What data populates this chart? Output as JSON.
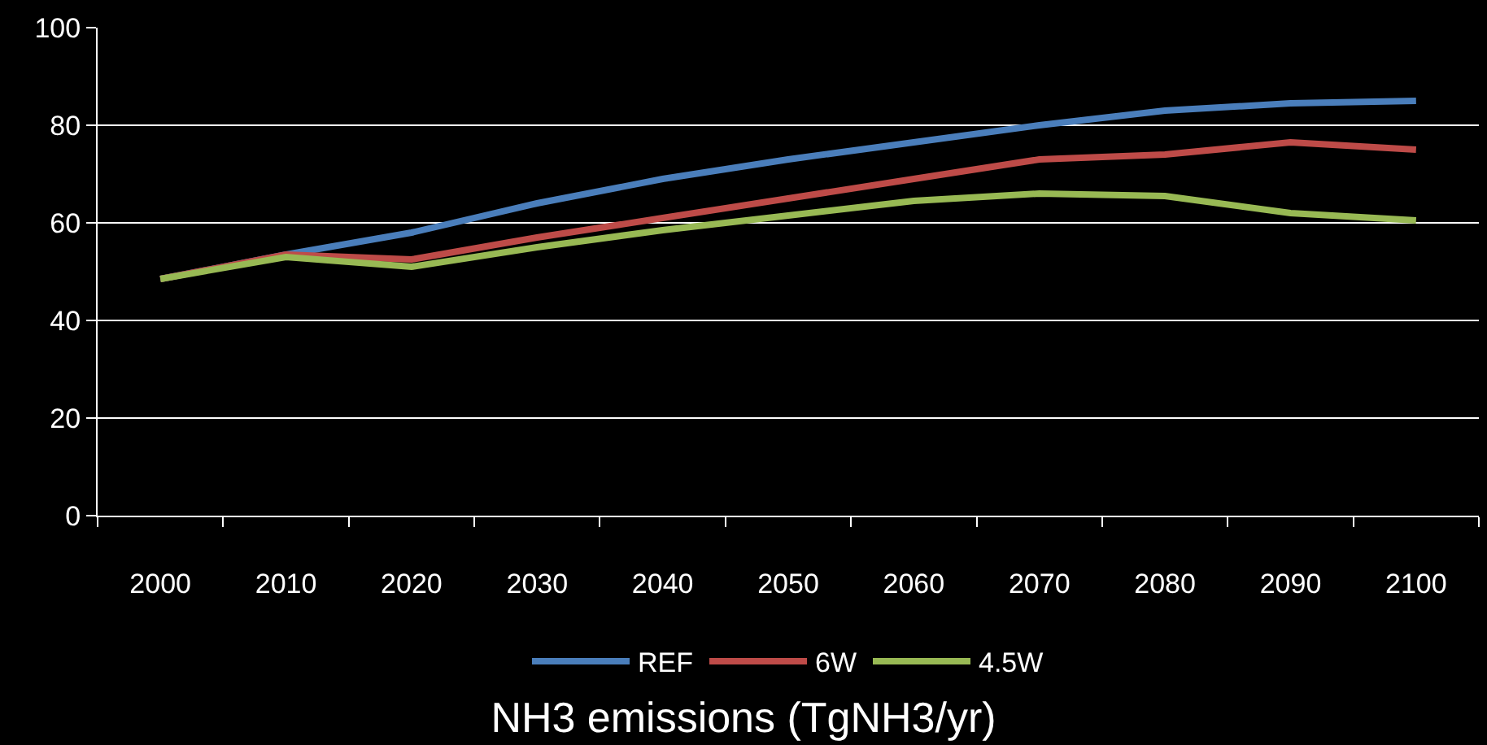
{
  "chart_data": {
    "type": "line",
    "title": "NH3 emissions (TgNH3/yr)",
    "categories": [
      "2000",
      "2010",
      "2020",
      "2030",
      "2040",
      "2050",
      "2060",
      "2070",
      "2080",
      "2090",
      "2100"
    ],
    "series": [
      {
        "name": "REF",
        "color": "#4a7ebb",
        "values": [
          48.5,
          53.5,
          58,
          64,
          69,
          73,
          76.5,
          80,
          83,
          84.5,
          85
        ]
      },
      {
        "name": "6W",
        "color": "#be4b48",
        "values": [
          48.5,
          53.5,
          52.5,
          57,
          61,
          65,
          69,
          73,
          74,
          76.5,
          75
        ]
      },
      {
        "name": "4.5W",
        "color": "#98b954",
        "values": [
          48.5,
          53,
          51,
          55,
          58.5,
          61.5,
          64.5,
          66,
          65.5,
          62,
          60.5
        ]
      }
    ],
    "ylim": [
      0,
      100
    ],
    "yticks": [
      0,
      20,
      40,
      60,
      80,
      100
    ],
    "grid": "y",
    "legend": "bottom",
    "marker": "none",
    "line_style": "solid"
  }
}
